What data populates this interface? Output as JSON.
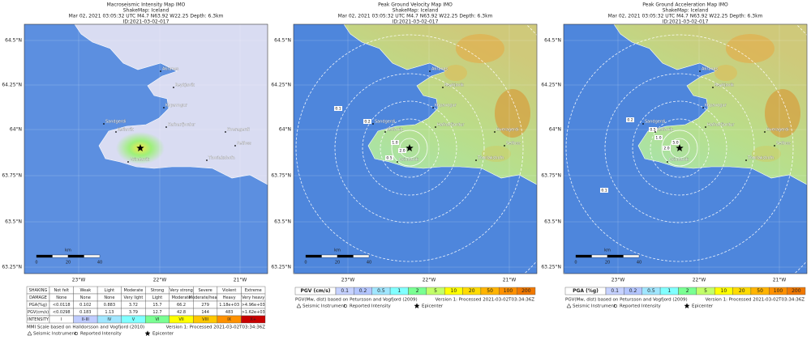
{
  "panels": [
    {
      "header": {
        "title": "Macroseismic Intensity Map IMO",
        "subtitle": "ShakeMap: Iceland",
        "event": "Mar 02, 2021 03:05:32 UTC M4.7 N63.92 W22.25 Depth: 6.3km",
        "id": "ID:2021-03-02-017"
      },
      "map": {
        "lat_labels": [
          "64.5°N",
          "64.25°N",
          "64°N",
          "63.75°N",
          "63.5°N",
          "63.25°N"
        ],
        "lon_labels": [
          "23°W",
          "22°W",
          "21°W"
        ],
        "scale": {
          "unit": "km",
          "ticks": [
            "0",
            "20",
            "40"
          ]
        },
        "places": [
          "Akranes",
          "Reykjavik",
          "Kopavogur",
          "Hafnarfjordur",
          "Sandgerdi",
          "Keflavik",
          "Grindavik",
          "Hveragerdi",
          "Selfoss",
          "Thorlakshofn"
        ],
        "contour_labels": []
      },
      "legend": {
        "table": {
          "rows": [
            [
              "SHAKING",
              "Not felt",
              "Weak",
              "Light",
              "Moderate",
              "Strong",
              "Very strong",
              "Severe",
              "Violent",
              "Extreme"
            ],
            [
              "DAMAGE",
              "None",
              "None",
              "None",
              "Very light",
              "Light",
              "Moderate",
              "Moderate/heavy",
              "Heavy",
              "Very heavy"
            ],
            [
              "PGA(%g)",
              "<0.0118",
              "0.102",
              "0.883",
              "3.72",
              "15.7",
              "66.2",
              "279",
              "1.18e+03",
              ">4.96e+03"
            ],
            [
              "PGV(cm/s)",
              "<0.0298",
              "0.183",
              "1.13",
              "3.79",
              "12.7",
              "42.8",
              "144",
              "483",
              ">1.62e+03"
            ],
            [
              "INTENSITY",
              "I",
              "II-III",
              "IV",
              "V",
              "VI",
              "VII",
              "VIII",
              "IX",
              "X+"
            ]
          ],
          "intensity_colors": [
            "#ffffff",
            "#bfccff",
            "#a0e6ff",
            "#80ffff",
            "#7aff93",
            "#ffff00",
            "#ffc800",
            "#ff9100",
            "#c80000"
          ]
        },
        "notes": {
          "source": "MMI Scale based on Halldorsson and Vogfjord (2010)",
          "version": "Version 1: Processed 2021-03-02T03:34:36Z",
          "seismic": "Seismic Instrument",
          "reported": "Reported Intensity",
          "epicenter": "Epicenter"
        }
      }
    },
    {
      "header": {
        "title": "Peak Ground Velocity Map IMO",
        "subtitle": "ShakeMap: Iceland",
        "event": "Mar 02, 2021 03:05:32 UTC M4.7 N63.92 W22.25 Depth: 6.3km",
        "id": "ID:2021-03-02-017"
      },
      "map": {
        "lat_labels": [
          "64.5°N",
          "64.25°N",
          "64°N",
          "63.75°N",
          "63.5°N",
          "63.25°N"
        ],
        "lon_labels": [
          "23°W",
          "22°W",
          "21°W"
        ],
        "scale": {
          "unit": "km",
          "ticks": [
            "0",
            "20",
            "40"
          ]
        },
        "places": [
          "Akranes",
          "Reykjavik",
          "Kopavogur",
          "Hafnarfjordur",
          "Sandgerdi",
          "Keflavik",
          "Grindavik",
          "Hveragerdi",
          "Selfoss",
          "Thorlakshofn"
        ],
        "contour_labels": [
          "0.1",
          "0.2",
          "0.5",
          "1.0",
          "2.0"
        ]
      },
      "legend": {
        "scale": {
          "title": "PGV (cm/s)",
          "items": [
            {
              "label": "0.1",
              "color": "#c6d2ff"
            },
            {
              "label": "0.2",
              "color": "#b4c6ff"
            },
            {
              "label": "0.5",
              "color": "#a0e6ff"
            },
            {
              "label": "1",
              "color": "#80ffff"
            },
            {
              "label": "2",
              "color": "#7aff93"
            },
            {
              "label": "5",
              "color": "#c2ff6a"
            },
            {
              "label": "10",
              "color": "#ffff00"
            },
            {
              "label": "20",
              "color": "#ffdc00"
            },
            {
              "label": "50",
              "color": "#ffb400"
            },
            {
              "label": "100",
              "color": "#ff9100"
            },
            {
              "label": "200",
              "color": "#f07800"
            }
          ]
        },
        "notes": {
          "source": "PGV(Mw, dist) based on Petursson and Vogfjord (2009)",
          "version": "Version 1: Processed 2021-03-02T03:34:36Z",
          "seismic": "Seismic Instrument",
          "reported": "Reported Intensity",
          "epicenter": "Epicenter"
        }
      }
    },
    {
      "header": {
        "title": "Peak Ground Acceleration Map IMO",
        "subtitle": "ShakeMap: Iceland",
        "event": "Mar 02, 2021 03:05:32 UTC M4.7 N63.92 W22.25 Depth: 6.3km",
        "id": "ID:2021-03-02-017"
      },
      "map": {
        "lat_labels": [
          "64.5°N",
          "64.25°N",
          "64°N",
          "63.75°N",
          "63.5°N",
          "63.25°N"
        ],
        "lon_labels": [
          "23°W",
          "22°W",
          "21°W"
        ],
        "scale": {
          "unit": "km",
          "ticks": [
            "0",
            "20",
            "40"
          ]
        },
        "places": [
          "Akranes",
          "Reykjavik",
          "Kopavogur",
          "Hafnarfjordur",
          "Sandgerdi",
          "Keflavik",
          "Grindavik",
          "Hveragerdi",
          "Selfoss",
          "Thorlakshofn"
        ],
        "contour_labels": [
          "0.1",
          "0.2",
          "0.5",
          "1.0",
          "2.0",
          "5.0"
        ]
      },
      "legend": {
        "scale": {
          "title": "PGA (%g)",
          "items": [
            {
              "label": "0.1",
              "color": "#c6d2ff"
            },
            {
              "label": "0.2",
              "color": "#b4c6ff"
            },
            {
              "label": "0.5",
              "color": "#a0e6ff"
            },
            {
              "label": "1",
              "color": "#80ffff"
            },
            {
              "label": "2",
              "color": "#7aff93"
            },
            {
              "label": "5",
              "color": "#c2ff6a"
            },
            {
              "label": "10",
              "color": "#ffff00"
            },
            {
              "label": "20",
              "color": "#ffdc00"
            },
            {
              "label": "50",
              "color": "#ffb400"
            },
            {
              "label": "100",
              "color": "#ff9100"
            },
            {
              "label": "200",
              "color": "#f07800"
            }
          ]
        },
        "notes": {
          "source": "PGV(Mw, dist) based on Petursson and Vogfjord (2009)",
          "version": "Version 1: Processed 2021-03-02T03:34:36Z",
          "seismic": "Seismic Instrument",
          "reported": "Reported Intensity",
          "epicenter": "Epicenter"
        }
      }
    }
  ]
}
